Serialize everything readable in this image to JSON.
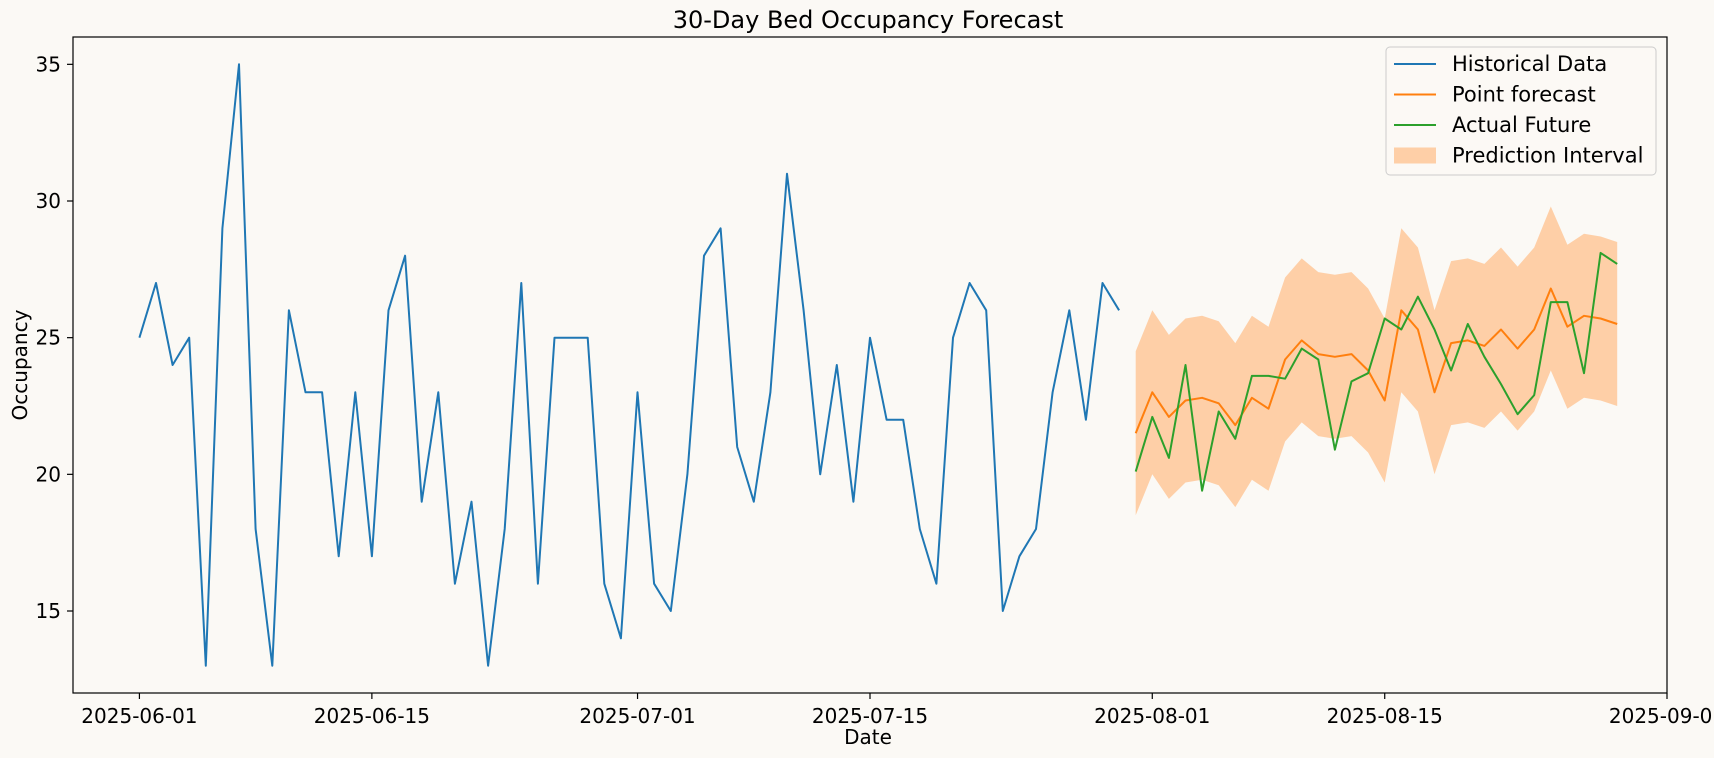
{
  "chart_data": {
    "type": "line",
    "title": "30-Day Bed Occupancy Forecast",
    "xlabel": "Date",
    "ylabel": "Occupancy",
    "xlim": [
      "2025-05-28",
      "2025-09-01"
    ],
    "ylim": [
      12,
      36
    ],
    "x_ticks": [
      "2025-06-01",
      "2025-06-15",
      "2025-07-01",
      "2025-07-15",
      "2025-08-01",
      "2025-08-15",
      "2025-09-01"
    ],
    "y_ticks": [
      15,
      20,
      25,
      30,
      35
    ],
    "grid": false,
    "legend_position": "top-right",
    "background_color": "#fbf9f5",
    "series": [
      {
        "name": "Historical Data",
        "kind": "line",
        "color": "#1f77b4",
        "start_date": "2025-06-01",
        "values": [
          25,
          27,
          24,
          25,
          13,
          29,
          35,
          18,
          13,
          26,
          23,
          23,
          17,
          23,
          17,
          26,
          28,
          19,
          23,
          16,
          19,
          13,
          18,
          27,
          16,
          25,
          25,
          25,
          16,
          14,
          23,
          16,
          15,
          20,
          28,
          29,
          21,
          19,
          23,
          31,
          26,
          20,
          24,
          19,
          25,
          22,
          22,
          18,
          16,
          25,
          27,
          26,
          15,
          17,
          18,
          23,
          26,
          22,
          27,
          26
        ]
      },
      {
        "name": "Point forecast",
        "kind": "line",
        "color": "#ff7f0e",
        "start_date": "2025-07-31",
        "values": [
          21.5,
          23.0,
          22.1,
          22.7,
          22.8,
          22.6,
          21.8,
          22.8,
          22.4,
          24.2,
          24.9,
          24.4,
          24.3,
          24.4,
          23.8,
          22.7,
          26.0,
          25.3,
          23.0,
          24.8,
          24.9,
          24.7,
          25.3,
          24.6,
          25.3,
          26.8,
          25.4,
          25.8,
          25.7,
          25.5
        ]
      },
      {
        "name": "Actual Future",
        "kind": "line",
        "color": "#2ca02c",
        "start_date": "2025-07-31",
        "values": [
          20.1,
          22.1,
          20.6,
          24.0,
          19.4,
          22.3,
          21.3,
          23.6,
          23.6,
          23.5,
          24.6,
          24.2,
          20.9,
          23.4,
          23.7,
          25.7,
          25.3,
          26.5,
          25.3,
          23.8,
          25.5,
          24.3,
          23.3,
          22.2,
          22.9,
          26.3,
          26.3,
          23.7,
          28.1,
          27.7
        ]
      },
      {
        "name": "Prediction Interval",
        "kind": "band",
        "color": "#ffbe86",
        "start_date": "2025-07-31",
        "upper": [
          24.5,
          26.0,
          25.1,
          25.7,
          25.8,
          25.6,
          24.8,
          25.8,
          25.4,
          27.2,
          27.9,
          27.4,
          27.3,
          27.4,
          26.8,
          25.7,
          29.0,
          28.3,
          26.0,
          27.8,
          27.9,
          27.7,
          28.3,
          27.6,
          28.3,
          29.8,
          28.4,
          28.8,
          28.7,
          28.5
        ],
        "lower": [
          18.5,
          20.0,
          19.1,
          19.7,
          19.8,
          19.6,
          18.8,
          19.8,
          19.4,
          21.2,
          21.9,
          21.4,
          21.3,
          21.4,
          20.8,
          19.7,
          23.0,
          22.3,
          20.0,
          21.8,
          21.9,
          21.7,
          22.3,
          21.6,
          22.3,
          23.8,
          22.4,
          22.8,
          22.7,
          22.5
        ]
      }
    ]
  }
}
